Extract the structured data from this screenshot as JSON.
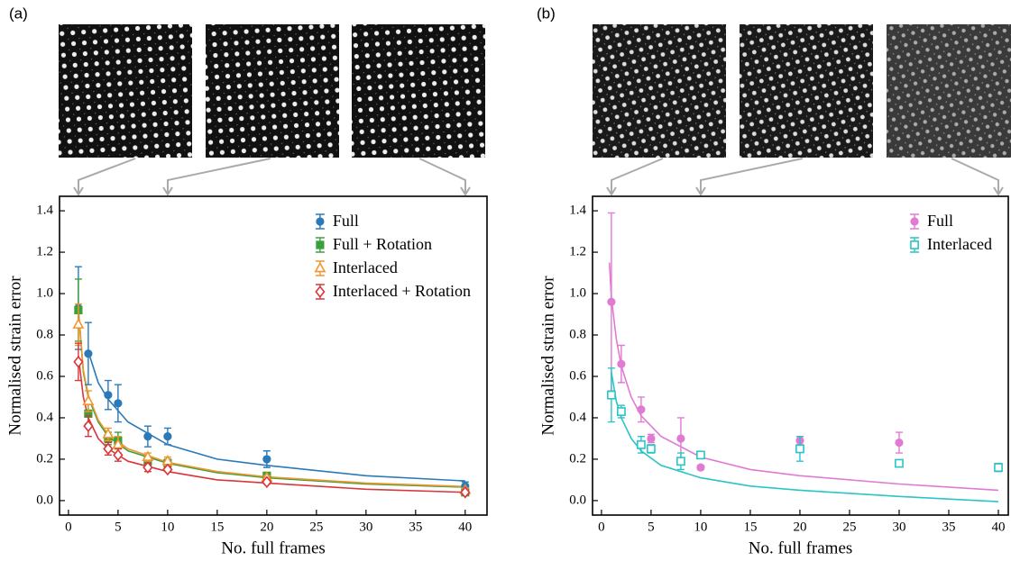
{
  "chart_data": [
    {
      "type": "scatter",
      "panel_label": "(a)",
      "xlabel": "No. full frames",
      "ylabel": "Normalised strain error",
      "xlim": [
        -0.9,
        42.2
      ],
      "ylim": [
        -0.07,
        1.47
      ],
      "xticks": [
        0,
        5,
        10,
        15,
        20,
        25,
        30,
        35,
        40
      ],
      "yticks": [
        {
          "value": 0,
          "label": "0.0"
        },
        0.2,
        0.4,
        0.6,
        0.8,
        {
          "value": 1,
          "label": "1.0"
        },
        1.2,
        1.4
      ],
      "legend": "upper right",
      "series": [
        {
          "name": "Full",
          "color": "#2a7ab9",
          "marker": "circle",
          "x": [
            1,
            2,
            4,
            5,
            8,
            10,
            20,
            40
          ],
          "values": [
            0.93,
            0.71,
            0.51,
            0.47,
            0.31,
            0.31,
            0.2,
            0.07
          ],
          "errors": [
            0.2,
            0.15,
            0.07,
            0.09,
            0.05,
            0.04,
            0.04,
            0.02
          ],
          "fit": {
            "x": [
              2,
              3,
              4,
              6,
              10,
              15,
              20,
              30,
              40
            ],
            "values": [
              0.72,
              0.57,
              0.49,
              0.38,
              0.27,
              0.2,
              0.17,
              0.12,
              0.095
            ]
          }
        },
        {
          "name": "Full + Rotation",
          "color": "#3aa13a",
          "marker": "square",
          "x": [
            1,
            2,
            4,
            5,
            8,
            10,
            20,
            40
          ],
          "values": [
            0.92,
            0.42,
            0.3,
            0.29,
            0.19,
            0.18,
            0.12,
            0.04
          ],
          "errors": [
            0.15,
            0.05,
            0.03,
            0.04,
            0.02,
            0.02,
            0.01,
            0.01
          ],
          "fit": {
            "x": [
              1,
              1.5,
              2,
              3,
              4,
              6,
              10,
              15,
              20,
              30,
              40
            ],
            "values": [
              0.92,
              0.62,
              0.5,
              0.38,
              0.31,
              0.24,
              0.18,
              0.135,
              0.11,
              0.08,
              0.065
            ]
          }
        },
        {
          "name": "Interlaced",
          "color": "#f2952f",
          "marker": "triangle",
          "x": [
            1,
            2,
            4,
            5,
            8,
            10,
            20,
            40
          ],
          "values": [
            0.85,
            0.48,
            0.32,
            0.27,
            0.21,
            0.19,
            0.11,
            0.05
          ],
          "errors": [
            0.1,
            0.05,
            0.03,
            0.04,
            0.02,
            0.02,
            0.01,
            0.01
          ],
          "fit": {
            "x": [
              1,
              1.5,
              2,
              3,
              4,
              6,
              10,
              15,
              20,
              30,
              40
            ],
            "values": [
              0.93,
              0.63,
              0.51,
              0.39,
              0.32,
              0.25,
              0.185,
              0.14,
              0.115,
              0.085,
              0.068
            ]
          }
        },
        {
          "name": "Interlaced + Rotation",
          "color": "#d9363a",
          "marker": "diamond",
          "x": [
            1,
            2,
            4,
            5,
            8,
            10,
            20,
            40
          ],
          "values": [
            0.67,
            0.36,
            0.25,
            0.22,
            0.16,
            0.15,
            0.09,
            0.04
          ],
          "errors": [
            0.09,
            0.05,
            0.03,
            0.03,
            0.02,
            0.01,
            0.01,
            0.01
          ],
          "fit": {
            "x": [
              1,
              1.5,
              2,
              3,
              4,
              6,
              10,
              15,
              20,
              30,
              40
            ],
            "values": [
              0.7,
              0.5,
              0.4,
              0.3,
              0.25,
              0.19,
              0.14,
              0.1,
              0.085,
              0.055,
              0.04
            ]
          }
        }
      ]
    },
    {
      "type": "scatter",
      "panel_label": "(b)",
      "xlabel": "No. full frames",
      "ylabel": "Normalised strain error",
      "xlim": [
        -0.9,
        41
      ],
      "ylim": [
        -0.07,
        1.47
      ],
      "xticks": [
        0,
        5,
        10,
        15,
        20,
        25,
        30,
        35,
        40
      ],
      "yticks": [
        {
          "value": 0,
          "label": "0.0"
        },
        0.2,
        0.4,
        0.6,
        0.8,
        {
          "value": 1,
          "label": "1.0"
        },
        1.2,
        1.4
      ],
      "legend": "upper right",
      "series": [
        {
          "name": "Full",
          "color": "#e07ad3",
          "marker": "circle",
          "x": [
            1,
            2,
            4,
            5,
            8,
            10,
            20,
            30
          ],
          "values": [
            0.96,
            0.66,
            0.44,
            0.3,
            0.3,
            0.16,
            0.29,
            0.28
          ],
          "errors": [
            0.43,
            0.09,
            0.06,
            0.02,
            0.1,
            0.01,
            0.02,
            0.05
          ],
          "fit": {
            "x": [
              0.8,
              1,
              1.5,
              2,
              3,
              4,
              6,
              10,
              15,
              20,
              30,
              40
            ],
            "values": [
              1.15,
              0.98,
              0.78,
              0.65,
              0.5,
              0.41,
              0.31,
              0.21,
              0.15,
              0.12,
              0.08,
              0.05
            ]
          }
        },
        {
          "name": "Interlaced",
          "color": "#2bc4c8",
          "marker": "open-square",
          "x": [
            1,
            2,
            4,
            5,
            8,
            10,
            20,
            30,
            40
          ],
          "values": [
            0.51,
            0.43,
            0.27,
            0.25,
            0.19,
            0.22,
            0.25,
            0.18,
            0.16
          ],
          "errors": [
            0.13,
            0.03,
            0.04,
            0.02,
            0.04,
            0.01,
            0.06,
            0.01,
            0.02
          ],
          "fit": {
            "x": [
              1,
              1.5,
              2,
              3,
              4,
              6,
              10,
              15,
              20,
              30,
              40
            ],
            "values": [
              0.62,
              0.48,
              0.4,
              0.3,
              0.24,
              0.17,
              0.11,
              0.07,
              0.05,
              0.02,
              -0.005
            ]
          }
        }
      ]
    }
  ]
}
